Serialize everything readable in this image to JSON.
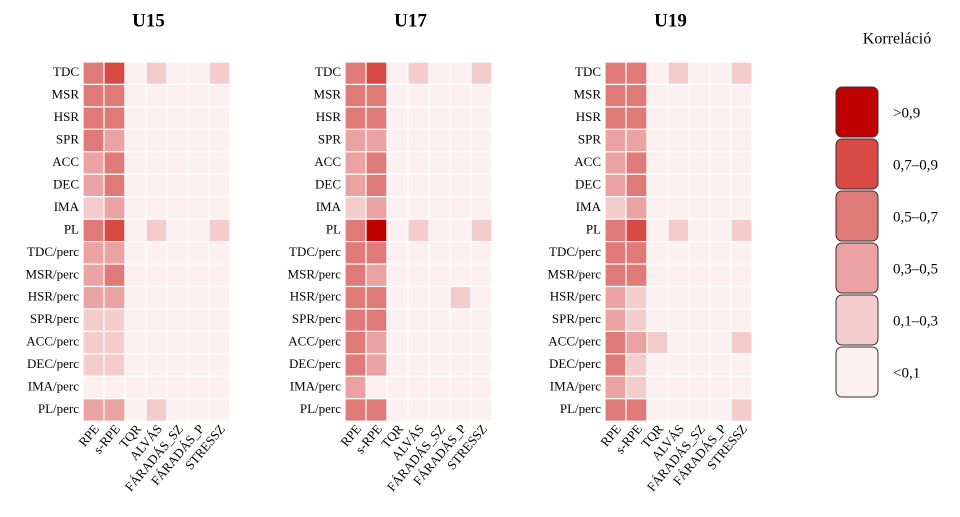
{
  "chart_data": [
    {
      "type": "heatmap",
      "title": "U15",
      "rows": [
        "TDC",
        "MSR",
        "HSR",
        "SPR",
        "ACC",
        "DEC",
        "IMA",
        "PL",
        "TDC/perc",
        "MSR/perc",
        "HSR/perc",
        "SPR/perc",
        "ACC/perc",
        "DEC/perc",
        "IMA/perc",
        "PL/perc"
      ],
      "columns": [
        "RPE",
        "s-RPE",
        "TQR",
        "ALVÁS",
        "FÁRADÁS_SZ",
        "FÁRADÁS_P",
        "STRESSZ"
      ],
      "values": [
        [
          0.6,
          0.8,
          0.05,
          0.2,
          0.05,
          0.05,
          0.2
        ],
        [
          0.6,
          0.6,
          0.05,
          0.05,
          0.05,
          0.05,
          0.05
        ],
        [
          0.6,
          0.6,
          0.05,
          0.05,
          0.05,
          0.05,
          0.05
        ],
        [
          0.6,
          0.4,
          0.05,
          0.05,
          0.05,
          0.05,
          0.05
        ],
        [
          0.4,
          0.6,
          0.05,
          0.05,
          0.05,
          0.05,
          0.05
        ],
        [
          0.4,
          0.6,
          0.05,
          0.05,
          0.05,
          0.05,
          0.05
        ],
        [
          0.2,
          0.4,
          0.05,
          0.05,
          0.05,
          0.05,
          0.05
        ],
        [
          0.6,
          0.8,
          0.05,
          0.2,
          0.05,
          0.05,
          0.2
        ],
        [
          0.4,
          0.4,
          0.05,
          0.05,
          0.05,
          0.05,
          0.05
        ],
        [
          0.4,
          0.6,
          0.05,
          0.05,
          0.05,
          0.05,
          0.05
        ],
        [
          0.4,
          0.4,
          0.05,
          0.05,
          0.05,
          0.05,
          0.05
        ],
        [
          0.2,
          0.2,
          0.05,
          0.05,
          0.05,
          0.05,
          0.05
        ],
        [
          0.2,
          0.2,
          0.05,
          0.05,
          0.05,
          0.05,
          0.05
        ],
        [
          0.2,
          0.2,
          0.05,
          0.05,
          0.05,
          0.05,
          0.05
        ],
        [
          0.05,
          0.05,
          0.05,
          0.05,
          0.05,
          0.05,
          0.05
        ],
        [
          0.4,
          0.4,
          0.05,
          0.2,
          0.05,
          0.05,
          0.05
        ]
      ]
    },
    {
      "type": "heatmap",
      "title": "U17",
      "rows": [
        "TDC",
        "MSR",
        "HSR",
        "SPR",
        "ACC",
        "DEC",
        "IMA",
        "PL",
        "TDC/perc",
        "MSR/perc",
        "HSR/perc",
        "SPR/perc",
        "ACC/perc",
        "DEC/perc",
        "IMA/perc",
        "PL/perc"
      ],
      "columns": [
        "RPE",
        "s-RPE",
        "TQR",
        "ALVÁS",
        "FÁRADÁS_SZ",
        "FÁRADÁS_P",
        "STRESSZ"
      ],
      "values": [
        [
          0.6,
          0.8,
          0.05,
          0.2,
          0.05,
          0.05,
          0.2
        ],
        [
          0.6,
          0.6,
          0.05,
          0.05,
          0.05,
          0.05,
          0.05
        ],
        [
          0.6,
          0.6,
          0.05,
          0.05,
          0.05,
          0.05,
          0.05
        ],
        [
          0.4,
          0.4,
          0.05,
          0.05,
          0.05,
          0.05,
          0.05
        ],
        [
          0.4,
          0.6,
          0.05,
          0.05,
          0.05,
          0.05,
          0.05
        ],
        [
          0.4,
          0.6,
          0.05,
          0.05,
          0.05,
          0.05,
          0.05
        ],
        [
          0.2,
          0.4,
          0.05,
          0.05,
          0.05,
          0.05,
          0.05
        ],
        [
          0.6,
          0.95,
          0.05,
          0.2,
          0.05,
          0.05,
          0.2
        ],
        [
          0.6,
          0.6,
          0.05,
          0.05,
          0.05,
          0.05,
          0.05
        ],
        [
          0.6,
          0.4,
          0.05,
          0.05,
          0.05,
          0.05,
          0.05
        ],
        [
          0.6,
          0.6,
          0.05,
          0.05,
          0.05,
          0.2,
          0.05
        ],
        [
          0.6,
          0.6,
          0.05,
          0.05,
          0.05,
          0.05,
          0.05
        ],
        [
          0.6,
          0.4,
          0.05,
          0.05,
          0.05,
          0.05,
          0.05
        ],
        [
          0.6,
          0.4,
          0.05,
          0.05,
          0.05,
          0.05,
          0.05
        ],
        [
          0.4,
          0.05,
          0.05,
          0.05,
          0.05,
          0.05,
          0.05
        ],
        [
          0.6,
          0.6,
          0.05,
          0.05,
          0.05,
          0.05,
          0.05
        ]
      ]
    },
    {
      "type": "heatmap",
      "title": "U19",
      "rows": [
        "TDC",
        "MSR",
        "HSR",
        "SPR",
        "ACC",
        "DEC",
        "IMA",
        "PL",
        "TDC/perc",
        "MSR/perc",
        "HSR/perc",
        "SPR/perc",
        "ACC/perc",
        "DEC/perc",
        "IMA/perc",
        "PL/perc"
      ],
      "columns": [
        "RPE",
        "s-RPE",
        "TQR",
        "ALVÁS",
        "FÁRADÁS_SZ",
        "FÁRADÁS_P",
        "STRESSZ"
      ],
      "values": [
        [
          0.6,
          0.6,
          0.05,
          0.2,
          0.05,
          0.05,
          0.2
        ],
        [
          0.6,
          0.6,
          0.05,
          0.05,
          0.05,
          0.05,
          0.05
        ],
        [
          0.6,
          0.6,
          0.05,
          0.05,
          0.05,
          0.05,
          0.05
        ],
        [
          0.4,
          0.4,
          0.05,
          0.05,
          0.05,
          0.05,
          0.05
        ],
        [
          0.4,
          0.6,
          0.05,
          0.05,
          0.05,
          0.05,
          0.05
        ],
        [
          0.4,
          0.6,
          0.05,
          0.05,
          0.05,
          0.05,
          0.05
        ],
        [
          0.2,
          0.4,
          0.05,
          0.05,
          0.05,
          0.05,
          0.05
        ],
        [
          0.6,
          0.8,
          0.05,
          0.2,
          0.05,
          0.05,
          0.2
        ],
        [
          0.6,
          0.6,
          0.05,
          0.05,
          0.05,
          0.05,
          0.05
        ],
        [
          0.6,
          0.6,
          0.05,
          0.05,
          0.05,
          0.05,
          0.05
        ],
        [
          0.4,
          0.2,
          0.05,
          0.05,
          0.05,
          0.05,
          0.05
        ],
        [
          0.4,
          0.2,
          0.05,
          0.05,
          0.05,
          0.05,
          0.05
        ],
        [
          0.6,
          0.4,
          0.2,
          0.05,
          0.05,
          0.05,
          0.2
        ],
        [
          0.6,
          0.2,
          0.05,
          0.05,
          0.05,
          0.05,
          0.05
        ],
        [
          0.4,
          0.2,
          0.05,
          0.05,
          0.05,
          0.05,
          0.05
        ],
        [
          0.6,
          0.6,
          0.05,
          0.05,
          0.05,
          0.05,
          0.2
        ]
      ]
    }
  ],
  "legend": {
    "title": "Korreláció",
    "bins": [
      {
        "label": ">0,9",
        "color": "#c00000",
        "min": 0.9
      },
      {
        "label": "0,7–0,9",
        "color": "#d94a45",
        "min": 0.7
      },
      {
        "label": "0,5–0,7",
        "color": "#e07a78",
        "min": 0.5
      },
      {
        "label": "0,3–0,5",
        "color": "#eba2a2",
        "min": 0.3
      },
      {
        "label": "0,1–0,3",
        "color": "#f5cccc",
        "min": 0.1
      },
      {
        "label": "<0,1",
        "color": "#fdf0f0"
      }
    ]
  }
}
